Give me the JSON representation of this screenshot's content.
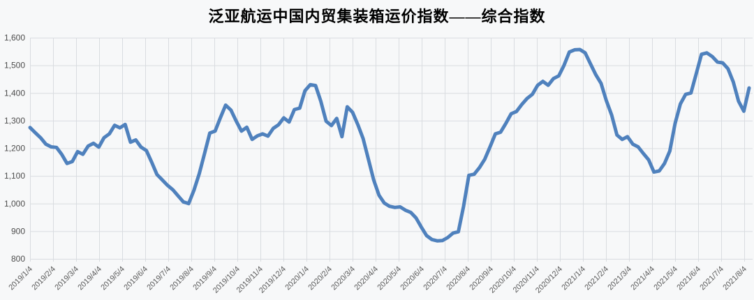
{
  "chart_data": {
    "type": "line",
    "title": "泛亚航运中国内贸集装箱运价指数——综合指数",
    "legend": "none",
    "grid": true,
    "ylim": [
      800,
      1600
    ],
    "y_tick_step": 100,
    "y_tick_labels": [
      "800",
      "900",
      "1,000",
      "1,100",
      "1,200",
      "1,300",
      "1,400",
      "1,500",
      "1,600"
    ],
    "x_tick_labels": [
      "2019/1/4",
      "2019/2/4",
      "2019/3/4",
      "2019/4/4",
      "2019/5/4",
      "2019/6/4",
      "2019/7/4",
      "2019/8/4",
      "2019/9/4",
      "2019/10/4",
      "2019/11/4",
      "2019/12/4",
      "2020/1/4",
      "2020/2/4",
      "2020/3/4",
      "2020/4/4",
      "2020/5/4",
      "2020/6/4",
      "2020/7/4",
      "2020/8/4",
      "2020/9/4",
      "2020/10/4",
      "2020/11/4",
      "2020/12/4",
      "2021/1/4",
      "2021/2/4",
      "2021/3/4",
      "2021/4/4",
      "2021/5/4",
      "2021/6/4",
      "2021/7/4",
      "2021/8/4"
    ],
    "point_frequency": "weekly",
    "series": [
      {
        "name": "综合指数",
        "color": "#4F81BD",
        "values": [
          1275,
          1256,
          1238,
          1215,
          1205,
          1203,
          1178,
          1145,
          1152,
          1188,
          1178,
          1208,
          1218,
          1204,
          1238,
          1252,
          1283,
          1274,
          1286,
          1222,
          1230,
          1204,
          1192,
          1150,
          1105,
          1086,
          1066,
          1050,
          1028,
          1006,
          1000,
          1048,
          1108,
          1180,
          1255,
          1262,
          1310,
          1356,
          1338,
          1298,
          1262,
          1276,
          1232,
          1245,
          1252,
          1244,
          1272,
          1285,
          1310,
          1295,
          1340,
          1345,
          1408,
          1430,
          1427,
          1370,
          1298,
          1282,
          1308,
          1242,
          1350,
          1330,
          1285,
          1235,
          1160,
          1085,
          1030,
          1002,
          990,
          986,
          988,
          976,
          968,
          948,
          915,
          884,
          870,
          865,
          866,
          877,
          893,
          898,
          990,
          1102,
          1106,
          1130,
          1160,
          1205,
          1252,
          1258,
          1290,
          1325,
          1333,
          1358,
          1380,
          1395,
          1428,
          1442,
          1428,
          1452,
          1462,
          1500,
          1548,
          1556,
          1557,
          1545,
          1505,
          1466,
          1435,
          1372,
          1320,
          1248,
          1232,
          1242,
          1215,
          1205,
          1181,
          1158,
          1114,
          1118,
          1145,
          1190,
          1290,
          1360,
          1395,
          1400,
          1470,
          1540,
          1545,
          1532,
          1512,
          1509,
          1488,
          1440,
          1370,
          1334,
          1418
        ]
      }
    ]
  },
  "colors": {
    "background": "#f7f8f9",
    "gridline": "#d9dce0",
    "tick_text": "#595959",
    "title_text": "#000000",
    "line": "#4F81BD"
  }
}
